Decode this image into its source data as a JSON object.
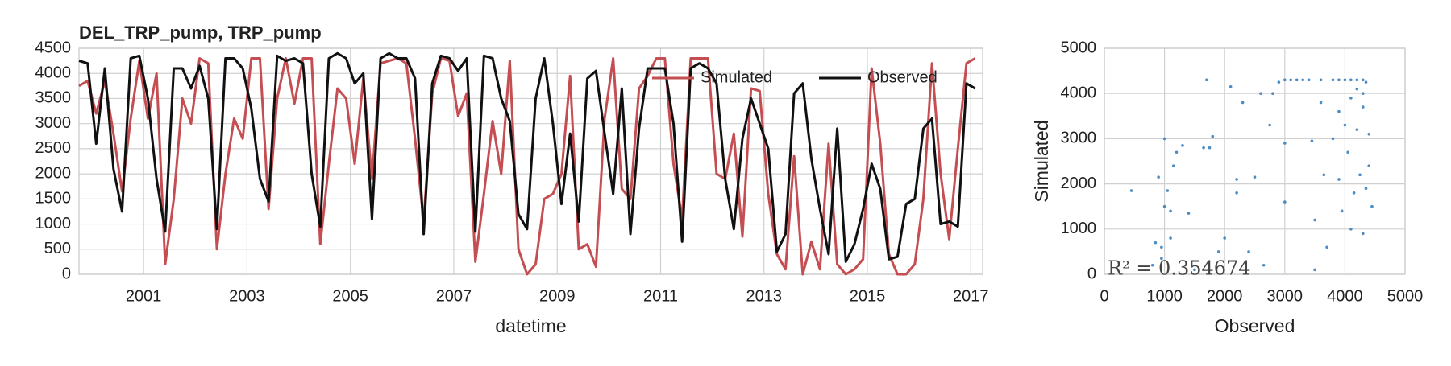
{
  "chart_data": [
    {
      "type": "line",
      "title": "DEL_TRP_pump, TRP_pump",
      "xlabel": "datetime",
      "grid": true,
      "legend": "upper right",
      "xlim": [
        1999.75,
        2017.23
      ],
      "xticks": [
        2001,
        2003,
        2005,
        2007,
        2009,
        2011,
        2013,
        2015,
        2017
      ],
      "ylim": [
        0,
        4500
      ],
      "yticks": [
        0,
        500,
        1000,
        1500,
        2000,
        2500,
        3000,
        3500,
        4000,
        4500
      ],
      "x": [
        1999.75,
        1999.917,
        2000.083,
        2000.25,
        2000.417,
        2000.583,
        2000.75,
        2000.917,
        2001.083,
        2001.25,
        2001.417,
        2001.583,
        2001.75,
        2001.917,
        2002.083,
        2002.25,
        2002.417,
        2002.583,
        2002.75,
        2002.917,
        2003.083,
        2003.25,
        2003.417,
        2003.583,
        2003.75,
        2003.917,
        2004.083,
        2004.25,
        2004.417,
        2004.583,
        2004.75,
        2004.917,
        2005.083,
        2005.25,
        2005.417,
        2005.583,
        2005.75,
        2005.917,
        2006.083,
        2006.25,
        2006.417,
        2006.583,
        2006.75,
        2006.917,
        2007.083,
        2007.25,
        2007.417,
        2007.583,
        2007.75,
        2007.917,
        2008.083,
        2008.25,
        2008.417,
        2008.583,
        2008.75,
        2008.917,
        2009.083,
        2009.25,
        2009.417,
        2009.583,
        2009.75,
        2009.917,
        2010.083,
        2010.25,
        2010.417,
        2010.583,
        2010.75,
        2010.917,
        2011.083,
        2011.25,
        2011.417,
        2011.583,
        2011.75,
        2011.917,
        2012.083,
        2012.25,
        2012.417,
        2012.583,
        2012.75,
        2012.917,
        2013.083,
        2013.25,
        2013.417,
        2013.583,
        2013.75,
        2013.917,
        2014.083,
        2014.25,
        2014.417,
        2014.583,
        2014.75,
        2014.917,
        2015.083,
        2015.25,
        2015.417,
        2015.583,
        2015.75,
        2015.917,
        2016.083,
        2016.25,
        2016.417,
        2016.583,
        2016.75,
        2016.917,
        2017.083
      ],
      "series": [
        {
          "name": "Simulated",
          "color": "#c44e52",
          "values": [
            3750,
            3850,
            3200,
            3850,
            2800,
            1650,
            3100,
            4250,
            3100,
            4000,
            200,
            1500,
            3500,
            3000,
            4300,
            4200,
            500,
            2000,
            3100,
            2700,
            4300,
            4300,
            1300,
            3500,
            4300,
            3400,
            4300,
            4300,
            600,
            2200,
            3700,
            3500,
            2200,
            3900,
            1900,
            4200,
            4250,
            4300,
            4200,
            2700,
            1050,
            3600,
            4300,
            4250,
            3150,
            3600,
            250,
            1600,
            3050,
            2000,
            4250,
            500,
            0,
            200,
            1500,
            1600,
            2000,
            3950,
            500,
            600,
            150,
            3100,
            4300,
            1700,
            1500,
            3700,
            3950,
            4300,
            4300,
            2200,
            1100,
            4300,
            4300,
            4300,
            2000,
            1900,
            2800,
            750,
            3700,
            3650,
            1600,
            400,
            100,
            2350,
            0,
            650,
            100,
            2600,
            200,
            0,
            100,
            300,
            4100,
            2600,
            400,
            0,
            0,
            200,
            1500,
            4200,
            2000,
            700,
            2500,
            4200,
            4300
          ]
        },
        {
          "name": "Observed",
          "color": "#111111",
          "values": [
            4250,
            4200,
            2600,
            4100,
            2100,
            1250,
            4300,
            4350,
            3500,
            1900,
            850,
            4100,
            4100,
            3700,
            4150,
            3500,
            900,
            4300,
            4300,
            4100,
            3300,
            1900,
            1450,
            4350,
            4250,
            4300,
            4200,
            2000,
            950,
            4300,
            4400,
            4300,
            3800,
            4000,
            1100,
            4300,
            4400,
            4300,
            4300,
            3900,
            800,
            3800,
            4350,
            4300,
            4050,
            4300,
            850,
            4350,
            4300,
            3500,
            3050,
            1200,
            900,
            3500,
            4300,
            3000,
            1400,
            2800,
            1050,
            3900,
            4050,
            2800,
            1600,
            3700,
            800,
            2900,
            4100,
            4100,
            4100,
            3000,
            650,
            4100,
            4200,
            4100,
            3800,
            1900,
            900,
            2700,
            3500,
            3000,
            2500,
            450,
            800,
            3600,
            3800,
            2300,
            1300,
            400,
            2900,
            250,
            600,
            1300,
            2200,
            1700,
            300,
            350,
            1400,
            1500,
            2900,
            3100,
            1000,
            1050,
            950,
            3800,
            3700
          ]
        }
      ]
    },
    {
      "type": "scatter",
      "xlabel": "Observed",
      "ylabel": "Simulated",
      "annotation": "R² = 0.354674",
      "color": "#4c8cc4",
      "grid": true,
      "xlim": [
        0,
        5000
      ],
      "xticks": [
        0,
        1000,
        2000,
        3000,
        4000,
        5000
      ],
      "ylim": [
        0,
        5000
      ],
      "yticks": [
        0,
        1000,
        2000,
        3000,
        4000,
        5000
      ],
      "x": [
        450,
        800,
        850,
        900,
        950,
        950,
        1000,
        1000,
        1050,
        1100,
        1100,
        1150,
        1200,
        1300,
        1400,
        1500,
        1650,
        1700,
        1750,
        1800,
        1900,
        2000,
        2100,
        2200,
        2200,
        2300,
        2400,
        2500,
        2600,
        2650,
        2750,
        2800,
        2900,
        3000,
        3000,
        3000,
        3100,
        3200,
        3300,
        3400,
        3450,
        3500,
        3500,
        3600,
        3600,
        3650,
        3700,
        3800,
        3800,
        3900,
        3900,
        3900,
        3950,
        4000,
        4000,
        4050,
        4100,
        4100,
        4100,
        4150,
        4200,
        4200,
        4200,
        4250,
        4300,
        4300,
        4300,
        4300,
        4350,
        4350,
        4400,
        4400,
        4450
      ],
      "y": [
        1850,
        200,
        700,
        2150,
        600,
        350,
        3000,
        1500,
        1850,
        800,
        1400,
        2400,
        2700,
        2850,
        1350,
        100,
        2800,
        4300,
        2800,
        3050,
        500,
        800,
        4150,
        2100,
        1800,
        3800,
        500,
        2150,
        4000,
        200,
        3300,
        4000,
        4250,
        4300,
        2900,
        1600,
        4300,
        4300,
        4300,
        4300,
        2950,
        100,
        1200,
        4300,
        3800,
        2200,
        600,
        4300,
        3000,
        4300,
        3600,
        2100,
        1400,
        4300,
        3300,
        2700,
        4300,
        3900,
        1000,
        1800,
        4300,
        4100,
        3200,
        2200,
        4300,
        4000,
        3700,
        900,
        4250,
        1900,
        3100,
        2400,
        1500
      ]
    }
  ]
}
